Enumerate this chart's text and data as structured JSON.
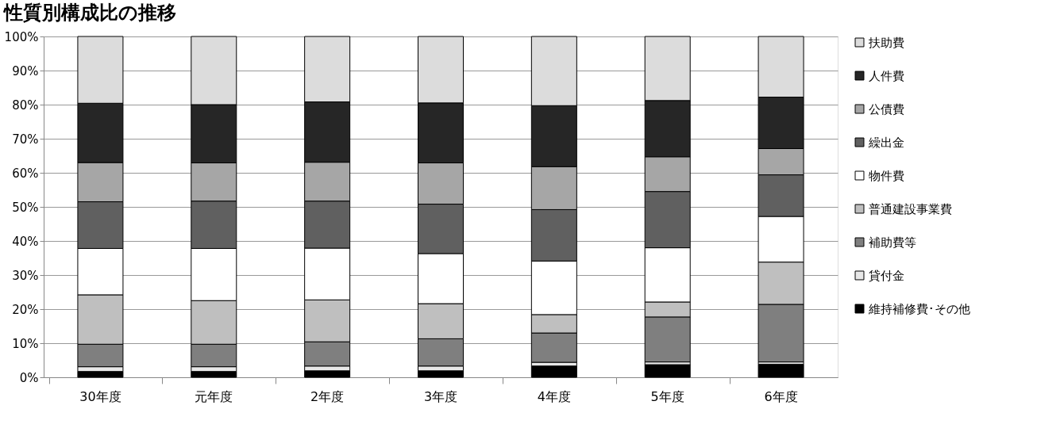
{
  "chart_data": {
    "type": "bar",
    "title": "性質別構成比の推移",
    "stacked": true,
    "categories": [
      "30年度",
      "元年度",
      "2年度",
      "3年度",
      "4年度",
      "5年度",
      "6年度"
    ],
    "ylim": [
      0,
      100
    ],
    "yticks": [
      {
        "value": 0,
        "label": "0%"
      },
      {
        "value": 10,
        "label": "10%"
      },
      {
        "value": 20,
        "label": "20%"
      },
      {
        "value": 30,
        "label": "30%"
      },
      {
        "value": 40,
        "label": "40%"
      },
      {
        "value": 50,
        "label": "50%"
      },
      {
        "value": 60,
        "label": "60%"
      },
      {
        "value": 70,
        "label": "70%"
      },
      {
        "value": 80,
        "label": "80%"
      },
      {
        "value": 90,
        "label": "90%"
      },
      {
        "value": 100,
        "label": "100%"
      }
    ],
    "grid": "y",
    "legend": "right",
    "series": [
      {
        "name": "維持補修費･その他",
        "color": "#000000",
        "values": [
          1.7,
          1.7,
          1.9,
          1.9,
          3.3,
          3.7,
          3.8
        ]
      },
      {
        "name": "貸付金",
        "color": "#e8e8e8",
        "values": [
          1.4,
          1.4,
          1.4,
          1.4,
          1.1,
          0.8,
          0.7
        ]
      },
      {
        "name": "補助費等",
        "color": "#7f7f7f",
        "values": [
          6.6,
          6.6,
          7.1,
          8.0,
          8.6,
          13.2,
          16.9
        ]
      },
      {
        "name": "普通建設事業費",
        "color": "#bfbfbf",
        "values": [
          14.5,
          12.8,
          12.3,
          10.3,
          5.4,
          4.4,
          12.4
        ]
      },
      {
        "name": "物件費",
        "color": "#ffffff",
        "values": [
          13.6,
          15.3,
          15.2,
          14.7,
          15.7,
          15.9,
          13.4
        ]
      },
      {
        "name": "繰出金",
        "color": "#606060",
        "values": [
          13.7,
          13.9,
          13.8,
          14.5,
          15.1,
          16.5,
          12.2
        ]
      },
      {
        "name": "公債費",
        "color": "#a6a6a6",
        "values": [
          11.5,
          11.2,
          11.4,
          12.1,
          12.6,
          10.2,
          7.7
        ]
      },
      {
        "name": "人件費",
        "color": "#262626",
        "values": [
          17.4,
          17.1,
          17.7,
          17.6,
          17.9,
          16.5,
          15.1
        ]
      },
      {
        "name": "扶助費",
        "color": "#dcdcdc",
        "values": [
          19.6,
          20.0,
          19.2,
          19.5,
          20.3,
          18.8,
          17.8
        ]
      }
    ]
  }
}
